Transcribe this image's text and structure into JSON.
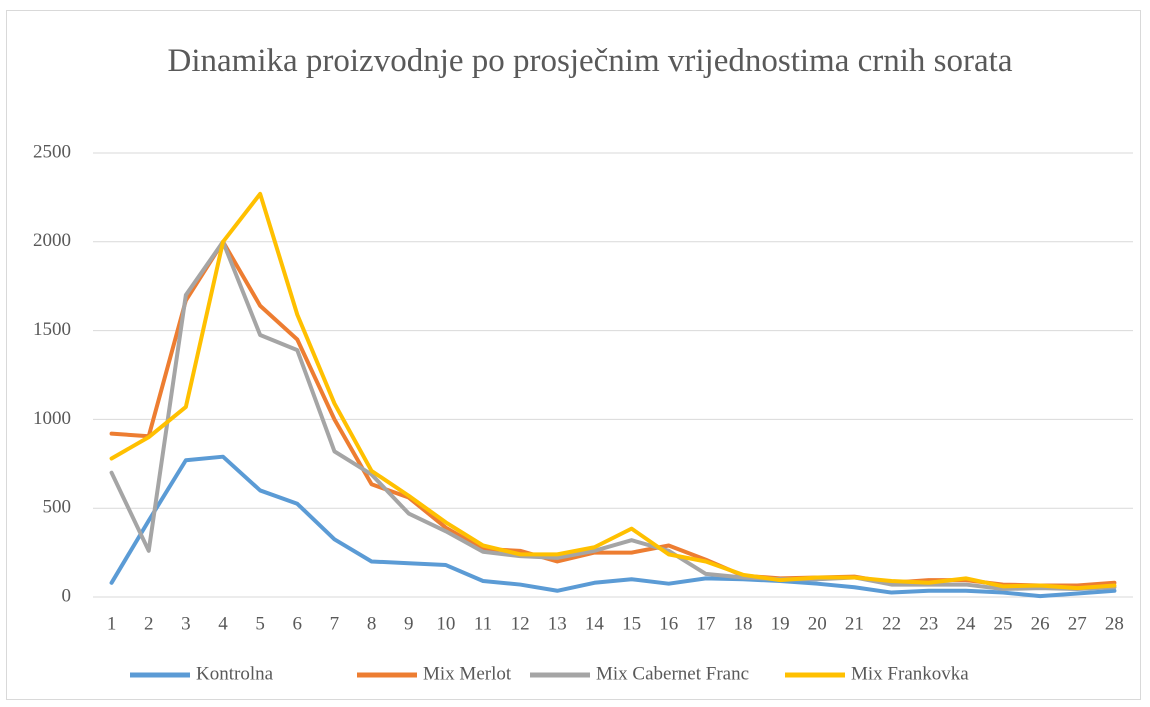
{
  "chart_data": {
    "type": "line",
    "title": "Dinamika proizvodnje po prosječnim vrijednostima crnih sorata",
    "categories": [
      "1",
      "2",
      "3",
      "4",
      "5",
      "6",
      "7",
      "8",
      "9",
      "10",
      "11",
      "12",
      "13",
      "14",
      "15",
      "16",
      "17",
      "18",
      "19",
      "20",
      "21",
      "22",
      "23",
      "24",
      "25",
      "26",
      "27",
      "28"
    ],
    "series": [
      {
        "name": "Kontrolna",
        "color": "#5b9bd5",
        "values": [
          80,
          430,
          770,
          790,
          600,
          525,
          325,
          200,
          190,
          180,
          90,
          70,
          35,
          80,
          100,
          75,
          105,
          100,
          90,
          75,
          55,
          25,
          35,
          35,
          25,
          5,
          20,
          35
        ]
      },
      {
        "name": "Mix Merlot",
        "color": "#ed7d31",
        "values": [
          920,
          905,
          1670,
          2000,
          1640,
          1450,
          1000,
          635,
          560,
          390,
          270,
          260,
          200,
          250,
          250,
          290,
          210,
          120,
          105,
          110,
          115,
          80,
          95,
          95,
          70,
          65,
          65,
          80
        ]
      },
      {
        "name": "Mix Cabernet Franc",
        "color": "#a5a5a5",
        "values": [
          700,
          260,
          1700,
          2000,
          1475,
          1390,
          820,
          690,
          470,
          370,
          255,
          230,
          220,
          260,
          320,
          260,
          130,
          110,
          100,
          100,
          110,
          70,
          70,
          70,
          45,
          50,
          45,
          55
        ]
      },
      {
        "name": "Mix Frankovka",
        "color": "#ffc000",
        "values": [
          780,
          900,
          1070,
          2000,
          2270,
          1590,
          1090,
          710,
          570,
          420,
          290,
          240,
          240,
          280,
          385,
          240,
          200,
          125,
          95,
          110,
          110,
          90,
          80,
          105,
          60,
          65,
          50,
          65
        ]
      }
    ],
    "ylim": [
      0,
      2500
    ],
    "yticks": [
      0,
      500,
      1000,
      1500,
      2000,
      2500
    ],
    "grid": true,
    "legend": "bottom"
  }
}
